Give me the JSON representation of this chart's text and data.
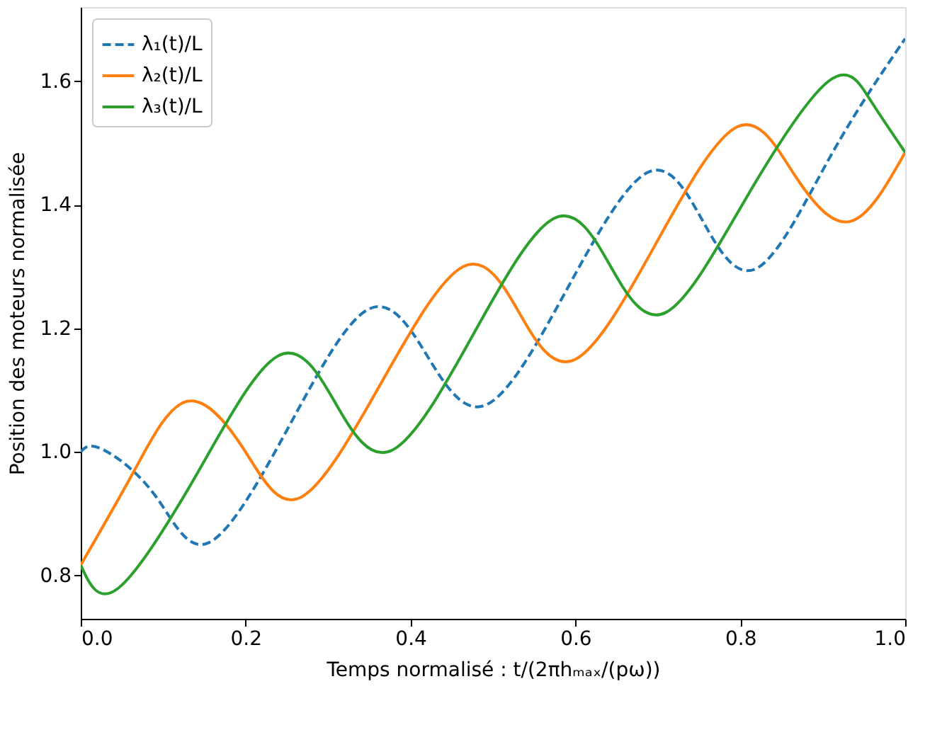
{
  "chart_data": {
    "type": "line",
    "xlabel": "Temps normalisé : t/(2πhₘₐₓ/(pω))",
    "ylabel": "Position des moteurs normalisée",
    "xlim": [
      0,
      1
    ],
    "xticks": [
      {
        "value": 0,
        "label": "0.0"
      },
      0.2,
      0.4,
      0.6,
      0.8,
      {
        "value": 1,
        "label": "1.0"
      }
    ],
    "ylim": [
      0.73,
      1.72
    ],
    "yticks": [
      0.8,
      {
        "value": 1,
        "label": "1.0"
      },
      1.2,
      1.4,
      1.6
    ],
    "grid": false,
    "legend": "top left",
    "marker": "none",
    "series": [
      {
        "name": "λ₁(t)/L",
        "color": "#1f77b4",
        "line_style": "dashed",
        "x": [
          0,
          0.025,
          0.09,
          0.155,
          0.252,
          0.349,
          0.421,
          0.493,
          0.59,
          0.687,
          0.754,
          0.821,
          0.91,
          1.0
        ],
        "values": [
          1.0,
          1.005,
          0.93,
          0.853,
          1.04,
          1.231,
          1.154,
          1.077,
          1.264,
          1.452,
          1.375,
          1.298,
          1.48,
          1.669
        ]
      },
      {
        "name": "λ₂(t)/L",
        "color": "#ff7f0e",
        "line_style": "solid",
        "x": [
          0,
          0.065,
          0.129,
          0.198,
          0.266,
          0.365,
          0.464,
          0.532,
          0.6,
          0.698,
          0.796,
          0.865,
          0.933,
          1.0
        ],
        "values": [
          0.817,
          0.97,
          1.082,
          1.004,
          0.926,
          1.113,
          1.3,
          1.225,
          1.15,
          1.338,
          1.526,
          1.45,
          1.373,
          1.485
        ]
      },
      {
        "name": "λ₃(t)/L",
        "color": "#2ca02c",
        "line_style": "solid",
        "x": [
          0,
          0.045,
          0.142,
          0.24,
          0.309,
          0.378,
          0.476,
          0.574,
          0.642,
          0.71,
          0.808,
          0.907,
          0.957,
          1.0
        ],
        "values": [
          0.817,
          0.779,
          0.967,
          1.156,
          1.079,
          1.003,
          1.19,
          1.378,
          1.302,
          1.226,
          1.413,
          1.6,
          1.571,
          1.485
        ]
      }
    ]
  }
}
